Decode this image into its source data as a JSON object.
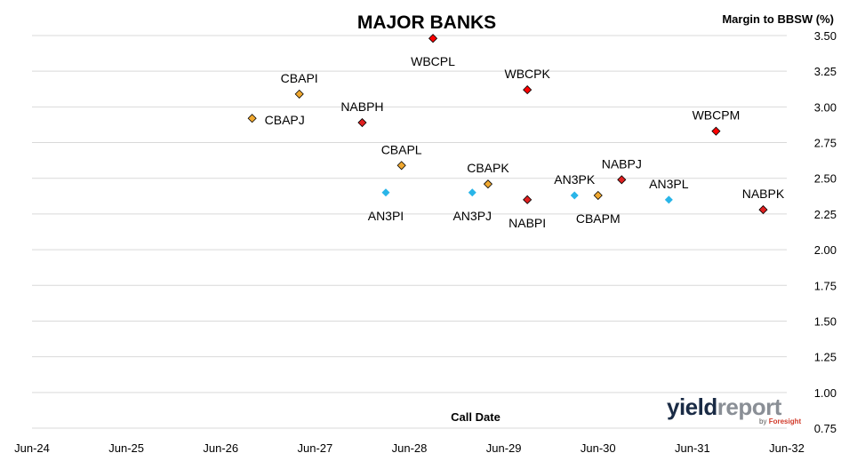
{
  "chart_data": {
    "type": "scatter",
    "title": "MAJOR BANKS",
    "xlabel": "Call Date",
    "ylabel": "Margin to BBSW (%)",
    "x_ticks": [
      "Jun-24",
      "Jun-25",
      "Jun-26",
      "Jun-27",
      "Jun-28",
      "Jun-29",
      "Jun-30",
      "Jun-31",
      "Jun-32"
    ],
    "xlim": [
      "Jun-24",
      "Jun-32"
    ],
    "ylim": [
      0.75,
      3.5
    ],
    "y_ticks": [
      "0.75",
      "1.00",
      "1.25",
      "1.50",
      "1.75",
      "2.00",
      "2.25",
      "2.50",
      "2.75",
      "3.00",
      "3.25",
      "3.50"
    ],
    "grid": "horizontal",
    "y_axis_side": "right",
    "points": [
      {
        "label": "CBAPJ",
        "date": "2026-10",
        "y": 2.92,
        "color": "#f0a830",
        "label_pos": "right"
      },
      {
        "label": "CBAPI",
        "date": "2027-04",
        "y": 3.09,
        "color": "#f0a830",
        "label_pos": "above"
      },
      {
        "label": "NABPH",
        "date": "2027-12",
        "y": 2.89,
        "color": "#e02020",
        "label_pos": "above"
      },
      {
        "label": "AN3PI",
        "date": "2028-03",
        "y": 2.4,
        "color": "#29b5e8",
        "label_pos": "below"
      },
      {
        "label": "CBAPL",
        "date": "2028-05",
        "y": 2.59,
        "color": "#f0a830",
        "label_pos": "above"
      },
      {
        "label": "WBCPL",
        "date": "2028-09",
        "y": 3.48,
        "color": "#ff0000",
        "label_pos": "below"
      },
      {
        "label": "CBAPK",
        "date": "2029-04",
        "y": 2.46,
        "color": "#f0a830",
        "label_pos": "above"
      },
      {
        "label": "AN3PJ",
        "date": "2029-02",
        "y": 2.4,
        "color": "#29b5e8",
        "label_pos": "below"
      },
      {
        "label": "NABPI",
        "date": "2029-09",
        "y": 2.35,
        "color": "#e02020",
        "label_pos": "below"
      },
      {
        "label": "WBCPK",
        "date": "2029-09",
        "y": 3.12,
        "color": "#ff0000",
        "label_pos": "above"
      },
      {
        "label": "AN3PK",
        "date": "2030-03",
        "y": 2.38,
        "color": "#29b5e8",
        "label_pos": "above"
      },
      {
        "label": "CBAPM",
        "date": "2030-06",
        "y": 2.38,
        "color": "#f0a830",
        "label_pos": "below"
      },
      {
        "label": "NABPJ",
        "date": "2030-09",
        "y": 2.49,
        "color": "#e02020",
        "label_pos": "above"
      },
      {
        "label": "AN3PL",
        "date": "2031-03",
        "y": 2.35,
        "color": "#29b5e8",
        "label_pos": "above"
      },
      {
        "label": "WBCPM",
        "date": "2031-09",
        "y": 2.83,
        "color": "#ff0000",
        "label_pos": "above"
      },
      {
        "label": "NABPK",
        "date": "2032-03",
        "y": 2.28,
        "color": "#e02020",
        "label_pos": "above"
      }
    ]
  },
  "logo": {
    "text_yield": "yield",
    "text_report": "report",
    "by_text": "by",
    "brand_text": "Foresight"
  }
}
